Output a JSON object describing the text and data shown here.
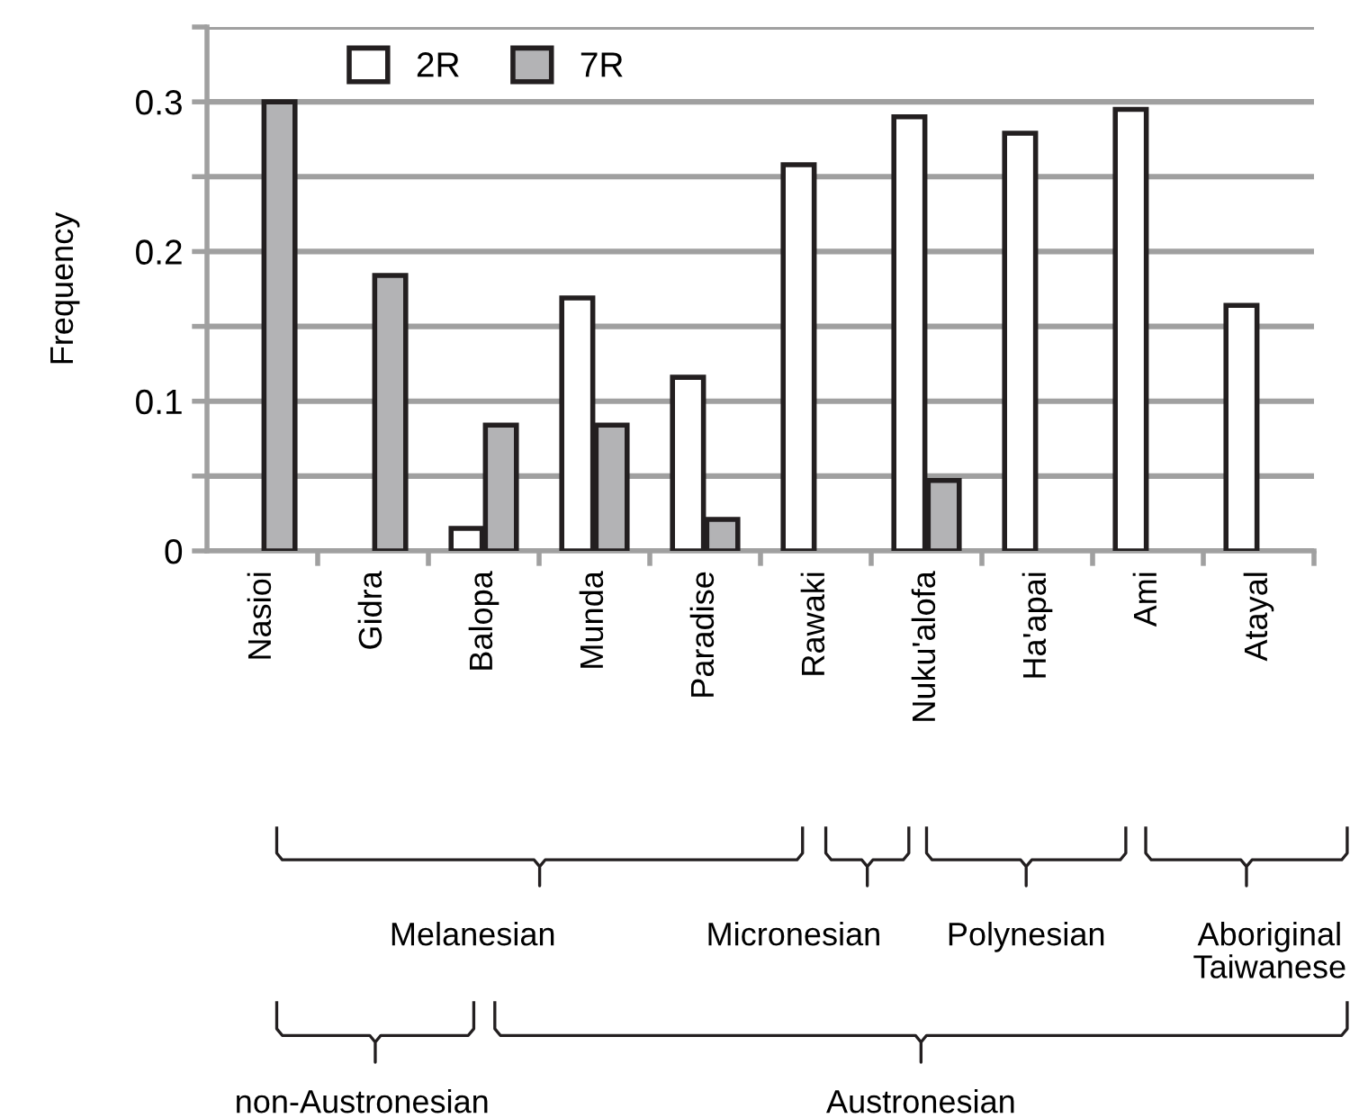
{
  "chart_data": {
    "type": "bar",
    "ylabel": "Frequency",
    "categories": [
      "Nasioi",
      "Gidra",
      "Balopa",
      "Munda",
      "Paradise",
      "Rawaki",
      "Nuku'alofa",
      "Ha'apai",
      "Ami",
      "Atayal"
    ],
    "series": [
      {
        "name": "2R",
        "color": "#ffffff",
        "values": [
          null,
          null,
          0.015,
          0.169,
          0.116,
          0.258,
          0.29,
          0.279,
          0.295,
          0.164
        ]
      },
      {
        "name": "7R",
        "color": "#b3b3b5",
        "values": [
          0.3,
          0.184,
          0.084,
          0.084,
          0.021,
          null,
          0.047,
          null,
          null,
          null
        ]
      }
    ],
    "ylim": [
      0,
      0.35
    ],
    "yticks": [
      0,
      {
        "value": 0.05,
        "label": null
      },
      0.1,
      {
        "value": 0.15,
        "label": null
      },
      0.2,
      {
        "value": 0.25,
        "label": null
      },
      0.3,
      {
        "value": 0.35,
        "label": null
      }
    ],
    "grid": "y",
    "legend": "top left",
    "annotations": [
      "Melanesian",
      "Micronesian",
      "Polynesian",
      "Aboriginal\nTaiwanese",
      "non-Austronesian",
      "Austronesian"
    ]
  }
}
